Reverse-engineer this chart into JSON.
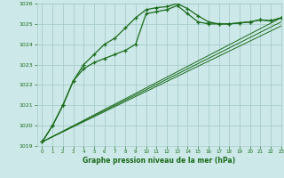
{
  "x": [
    0,
    1,
    2,
    3,
    4,
    5,
    6,
    7,
    8,
    9,
    10,
    11,
    12,
    13,
    14,
    15,
    16,
    17,
    18,
    19,
    20,
    21,
    22,
    23
  ],
  "line1": [
    1019.2,
    1020.0,
    1021.0,
    1022.2,
    1023.0,
    1023.5,
    1024.0,
    1024.3,
    1024.8,
    1025.3,
    1025.7,
    1025.8,
    1025.85,
    1026.0,
    1025.75,
    1025.4,
    1025.1,
    1025.0,
    1025.0,
    1025.05,
    1025.1,
    1025.2,
    1025.15,
    1025.3
  ],
  "line2": [
    1019.2,
    1020.0,
    1021.0,
    1022.2,
    1022.8,
    1023.1,
    1023.3,
    1023.5,
    1023.7,
    1024.0,
    1025.5,
    1025.6,
    1025.7,
    1025.9,
    1025.5,
    1025.1,
    1025.0,
    1025.0,
    1025.0,
    1025.05,
    1025.1,
    1025.2,
    1025.15,
    1025.3
  ],
  "line3_x": [
    0,
    23
  ],
  "line3_y": [
    1019.2,
    1025.3
  ],
  "line4_x": [
    0,
    23
  ],
  "line4_y": [
    1019.2,
    1025.1
  ],
  "line5_x": [
    0,
    23
  ],
  "line5_y": [
    1019.2,
    1024.9
  ],
  "bg_color": "#cce8e8",
  "grid_color": "#a8cccc",
  "line_color": "#1a6b1a",
  "xlabel": "Graphe pression niveau de la mer (hPa)",
  "xlabel_color": "#1a6b1a",
  "ylim": [
    1019,
    1026
  ],
  "xlim": [
    -0.5,
    23
  ],
  "yticks": [
    1019,
    1020,
    1021,
    1022,
    1023,
    1024,
    1025,
    1026
  ],
  "xticks": [
    0,
    1,
    2,
    3,
    4,
    5,
    6,
    7,
    8,
    9,
    10,
    11,
    12,
    13,
    14,
    15,
    16,
    17,
    18,
    19,
    20,
    21,
    22,
    23
  ]
}
